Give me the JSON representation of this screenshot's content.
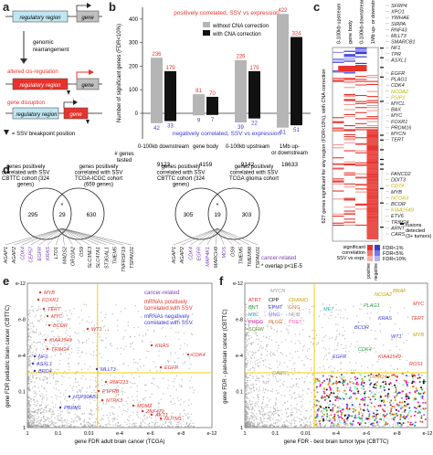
{
  "panels": {
    "a": {
      "letter": "a",
      "region_label": "regulatory region",
      "gene_label": "gene",
      "rearrangement_label": "genomic\nrearrangement",
      "altered_label": "altered cis-regulation",
      "disruption_label": "gene disruption",
      "breakpoint_legend": "= SSV breakpoint position"
    },
    "b": {
      "letter": "b",
      "ylabel": "Number of significant genes (FDR<10%)",
      "pos_title": "positively correlated, SSV vs expression",
      "neg_title": "negatively correlated, SSV vs expression",
      "legend_without": "without CNA correction",
      "legend_with": "with CNA correction",
      "tested_label": "# genes\ntested",
      "yticks": [
        "0",
        "100",
        "200",
        "300",
        "400"
      ]
    },
    "c": {
      "letter": "c",
      "col_labels": [
        "0-100kb upstream",
        "gene body",
        "0-100kb downstream",
        "1Mb up- or downstream"
      ],
      "ylabel": "627 genes significant for any region (FDR<10%), with CNA correction",
      "genes_top": [
        "SFRP4",
        "XPO1",
        "YWHAE",
        "SIRPA",
        "RNF43",
        "MLLT3",
        "SMARCB1",
        "NF1",
        "TPR",
        "ASXL1"
      ],
      "genes_mid": [
        "EGFR",
        "PLAG1",
        "CDK4",
        "NCOA2",
        "PSIP1",
        "MYCL",
        "BAX",
        "MYC",
        "FOXR1",
        "PRDM16",
        "MYCN",
        "TERT"
      ],
      "genes_bot": [
        "FANCD2",
        "DDIT3",
        "CD74",
        "MYB",
        "NCOA3",
        "BCOR",
        "KIAA1549",
        "ETV6",
        "TRIM24",
        "ARNT",
        "CARS"
      ],
      "legend_sig": "significant correlation SSV vs expr.",
      "fdr_labels": [
        "FDR<1%",
        "FDR<5%",
        "FDR<10%"
      ],
      "pos_label": "positive",
      "neg_label": "negative",
      "fusions_label": "fusions detected (3+ tumors)"
    },
    "d": {
      "letter": "d",
      "venn1_left": "genes positively correlated with SSV CBTTC cohort (324 genes)",
      "venn1_right": "genes positively correlated with SSV TCGA-ICGC cohort (659 genes)",
      "venn1_counts": [
        "295",
        "29",
        "630"
      ],
      "venn2_left": "genes positively correlated with SSV CBTTC cohort (324 genes)",
      "venn2_right": "genes positively correlated with SSV TCGA glioma cohort",
      "venn2_counts": [
        "305",
        "19",
        "303"
      ],
      "legend_cancer": "cancer-related",
      "legend_overlap": "* overlap p<1E-5",
      "genes1": [
        "AGAP1",
        "AGAP2",
        "CDK4",
        "CEP57",
        "EGFR",
        "KRAS",
        "LTO1",
        "MADS2",
        "OR10A2",
        "OS9",
        "SLC35E3",
        "SLC47A1",
        "ST3GAL1",
        "TMEM5",
        "TNFRSF19",
        "TSPAN31"
      ],
      "genes2": [
        "AGAP1",
        "AGAP2",
        "CDK4",
        "EGFR",
        "MAP4K1",
        "MARCH9",
        "MOS",
        "OS9",
        "TMEM5",
        "TMEM98",
        "TSPAN31"
      ]
    },
    "e": {
      "letter": "e",
      "xlabel": "gene FDR adult brain cancer (TCGA)",
      "ylabel": "gene FDR pediatric brain cancer (CBTTC)",
      "legend_cancer": "cancer-related",
      "legend_pos": "mRNAs positively correlated with SSV",
      "legend_neg": "mRNAs negatively correlated with SSV",
      "xticks": [
        "1",
        "0.1",
        "0.01",
        "e-4",
        "e-6",
        "e-8",
        "e-12"
      ],
      "yticks": [
        "1",
        "0.1",
        "e-4",
        "e-8",
        "e-12"
      ],
      "red_genes": [
        "MYB",
        "FOXR1",
        "TERT",
        "MYC",
        "BCOR",
        "WT1",
        "KIAA1549",
        "TRIM24",
        "KRAS",
        "EGFR",
        "CDK4",
        "RNF213",
        "PTPRB",
        "NTRK3",
        "MDM2",
        "ZNF479",
        "AKT1",
        "NUTM1"
      ],
      "blue_genes": [
        "NF1",
        "MLLT3",
        "ASXL1",
        "BRD4",
        "HSP90AB1",
        "PBRM1"
      ]
    },
    "f": {
      "letter": "f",
      "xlabel": "gene FDR - best brain tumor type (CBTTC)",
      "ylabel": "gene FDR - pan-brain cancer (CBTTC)",
      "tumor_types": [
        "ATRT",
        "CPP",
        "CRANIO",
        "BNT",
        "EPMT",
        "GNG",
        "MBL",
        "MNG",
        "NFIB",
        "PHGG",
        "PLGG",
        "PNET",
        "SCHW"
      ],
      "genes": [
        "MYCN",
        "MYC",
        "MET",
        "PLAG1",
        "KRAS",
        "TERT",
        "BCOR",
        "CDK4",
        "KIAA1549",
        "ROS1",
        "TRIM24",
        "WT1",
        "CARS",
        "EGFR",
        "MYB",
        "NCOA2",
        "BRAF"
      ],
      "xticks": [
        "1",
        "0.1",
        "0.01",
        "e-4",
        "e-6",
        "e-8",
        "e-12"
      ],
      "yticks": [
        "1",
        "0.1",
        "e-4",
        "e-8",
        "e-12"
      ]
    }
  },
  "chart_data": [
    {
      "type": "bar",
      "title": "positively correlated, SSV vs expression",
      "categories": [
        "0-100kb downstream",
        "gene body",
        "0-100kb upstream",
        "1Mb up- or downstream"
      ],
      "genes_tested": [
        "9123",
        "4159",
        "9142",
        "18633"
      ],
      "series": [
        {
          "name": "without CNA correction",
          "values": [
            236,
            81,
            226,
            422
          ]
        },
        {
          "name": "with CNA correction",
          "values": [
            179,
            70,
            179,
            324
          ]
        }
      ],
      "negative_series": [
        {
          "name": "without CNA correction",
          "values": [
            42,
            9,
            39,
            61
          ]
        },
        {
          "name": "with CNA correction",
          "values": [
            33,
            7,
            22,
            51
          ]
        }
      ],
      "ylim": [
        0,
        450
      ]
    }
  ],
  "colors": {
    "red": "#e8322b",
    "blue": "#3a3ad6",
    "yellow": "#f5e04a",
    "gray": "#b5b5b5",
    "black": "#111111",
    "purple": "#7b3fb5"
  }
}
